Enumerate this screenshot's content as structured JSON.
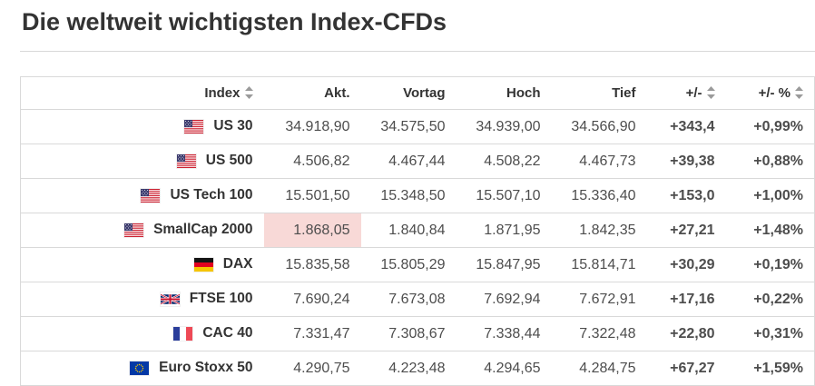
{
  "title": "Die weltweit wichtigsten Index-CFDs",
  "colors": {
    "positive": "#008d00",
    "highlight_flash": "#f8d9d7"
  },
  "table": {
    "columns": [
      {
        "label": "Index",
        "sortable": true
      },
      {
        "label": "Akt.",
        "sortable": false
      },
      {
        "label": "Vortag",
        "sortable": false
      },
      {
        "label": "Hoch",
        "sortable": false
      },
      {
        "label": "Tief",
        "sortable": false
      },
      {
        "label": "+/-",
        "sortable": true
      },
      {
        "label": "+/- %",
        "sortable": true
      }
    ],
    "rows": [
      {
        "flag": "us-flag",
        "index": "US 30",
        "akt": "34.918,90",
        "vortag": "34.575,50",
        "hoch": "34.939,00",
        "tief": "34.566,90",
        "change": "+343,4",
        "change_pct": "+0,99%",
        "highlight_akt": false
      },
      {
        "flag": "us-flag",
        "index": "US 500",
        "akt": "4.506,82",
        "vortag": "4.467,44",
        "hoch": "4.508,22",
        "tief": "4.467,73",
        "change": "+39,38",
        "change_pct": "+0,88%",
        "highlight_akt": false
      },
      {
        "flag": "us-flag",
        "index": "US Tech 100",
        "akt": "15.501,50",
        "vortag": "15.348,50",
        "hoch": "15.507,10",
        "tief": "15.336,40",
        "change": "+153,0",
        "change_pct": "+1,00%",
        "highlight_akt": false
      },
      {
        "flag": "us-flag",
        "index": "SmallCap 2000",
        "akt": "1.868,05",
        "vortag": "1.840,84",
        "hoch": "1.871,95",
        "tief": "1.842,35",
        "change": "+27,21",
        "change_pct": "+1,48%",
        "highlight_akt": true
      },
      {
        "flag": "de-flag",
        "index": "DAX",
        "akt": "15.835,58",
        "vortag": "15.805,29",
        "hoch": "15.847,95",
        "tief": "15.814,71",
        "change": "+30,29",
        "change_pct": "+0,19%",
        "highlight_akt": false
      },
      {
        "flag": "gb-flag",
        "index": "FTSE 100",
        "akt": "7.690,24",
        "vortag": "7.673,08",
        "hoch": "7.692,94",
        "tief": "7.672,91",
        "change": "+17,16",
        "change_pct": "+0,22%",
        "highlight_akt": false
      },
      {
        "flag": "fr-flag",
        "index": "CAC 40",
        "akt": "7.331,47",
        "vortag": "7.308,67",
        "hoch": "7.338,44",
        "tief": "7.322,48",
        "change": "+22,80",
        "change_pct": "+0,31%",
        "highlight_akt": false
      },
      {
        "flag": "eu-flag",
        "index": "Euro Stoxx 50",
        "akt": "4.290,75",
        "vortag": "4.223,48",
        "hoch": "4.294,65",
        "tief": "4.284,75",
        "change": "+67,27",
        "change_pct": "+1,59%",
        "highlight_akt": false
      }
    ]
  }
}
